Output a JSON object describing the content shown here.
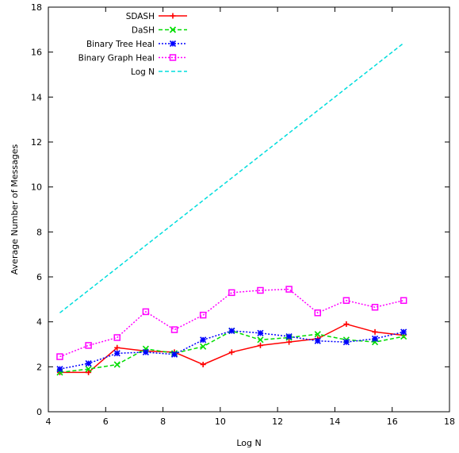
{
  "chart_data": {
    "type": "line",
    "title": "",
    "xlabel": "Log N",
    "ylabel": "Average Number of Messages",
    "xlim": [
      4,
      18
    ],
    "ylim": [
      0,
      18
    ],
    "xticks": [
      4,
      6,
      8,
      10,
      12,
      14,
      16,
      18
    ],
    "yticks": [
      0,
      2,
      4,
      6,
      8,
      10,
      12,
      14,
      16,
      18
    ],
    "xtick_labels": [
      "4",
      "6",
      "8",
      "10",
      "12",
      "14",
      "16",
      "18"
    ],
    "ytick_labels": [
      "0",
      "2",
      "4",
      "6",
      "8",
      "10",
      "12",
      "14",
      "16",
      "18"
    ],
    "grid": false,
    "legend_position": "top-left",
    "x": [
      4.4,
      5.4,
      6.4,
      7.4,
      8.4,
      9.4,
      10.4,
      11.4,
      12.4,
      13.4,
      14.4,
      15.4,
      16.4
    ],
    "series": [
      {
        "name": "SDASH",
        "color": "#ff0000",
        "marker": "plus",
        "dash": "solid",
        "values": [
          1.75,
          1.75,
          2.85,
          2.7,
          2.65,
          2.1,
          2.65,
          2.95,
          3.1,
          3.25,
          3.9,
          3.55,
          3.4
        ]
      },
      {
        "name": "DaSH",
        "color": "#00dd00",
        "marker": "cross",
        "dash": "dashed",
        "values": [
          1.75,
          1.9,
          2.1,
          2.8,
          2.6,
          2.9,
          3.6,
          3.2,
          3.3,
          3.45,
          3.2,
          3.1,
          3.35
        ]
      },
      {
        "name": "Binary Tree Heal",
        "color": "#0000ff",
        "marker": "star",
        "dash": "dotted",
        "values": [
          1.9,
          2.15,
          2.6,
          2.65,
          2.55,
          3.2,
          3.6,
          3.5,
          3.35,
          3.15,
          3.1,
          3.25,
          3.55
        ]
      },
      {
        "name": "Binary Graph Heal",
        "color": "#ff00ff",
        "marker": "square",
        "dash": "dotted",
        "values": [
          2.45,
          2.95,
          3.3,
          4.45,
          3.65,
          4.3,
          5.3,
          5.4,
          5.45,
          4.4,
          4.95,
          4.65,
          4.95
        ]
      },
      {
        "name": "Log N",
        "color": "#00dddd",
        "marker": "none",
        "dash": "dashed",
        "values": [
          4.4,
          5.4,
          6.4,
          7.4,
          8.4,
          9.4,
          10.4,
          11.4,
          12.4,
          13.4,
          14.4,
          15.4,
          16.4
        ]
      }
    ]
  }
}
